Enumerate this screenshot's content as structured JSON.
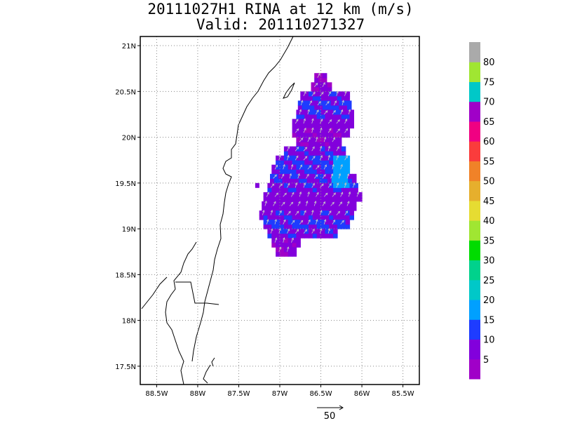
{
  "chart_data": {
    "type": "heatmap",
    "title": "20111027H1 RINA at 12 km (m/s)",
    "subtitle": "Valid: 201110271327",
    "xlabel": "",
    "ylabel": "",
    "xlim": [
      -88.7,
      -85.3
    ],
    "ylim": [
      17.3,
      21.1
    ],
    "x_ticks": [
      -88.5,
      -88,
      -87.5,
      -87,
      -86.5,
      -86,
      -85.5
    ],
    "x_tick_labels": [
      "88.5W",
      "88W",
      "87.5W",
      "87W",
      "86.5W",
      "86W",
      "85.5W"
    ],
    "y_ticks": [
      17.5,
      18,
      18.5,
      19,
      19.5,
      20,
      20.5,
      21
    ],
    "y_tick_labels": [
      "17.5N",
      "18N",
      "18.5N",
      "19N",
      "19.5N",
      "20N",
      "20.5N",
      "21N"
    ],
    "grid": true,
    "colorbar": {
      "labels": [
        "5",
        "10",
        "15",
        "20",
        "25",
        "30",
        "35",
        "40",
        "45",
        "50",
        "55",
        "60",
        "65",
        "70",
        "75",
        "80"
      ],
      "levels": [
        0,
        5,
        10,
        15,
        20,
        25,
        30,
        35,
        40,
        45,
        50,
        55,
        60,
        65,
        70,
        75,
        80,
        85
      ],
      "colors": [
        "#a000c8",
        "#8200dc",
        "#1e3cff",
        "#00a0ff",
        "#00c8c8",
        "#00d28c",
        "#00dc00",
        "#a0e632",
        "#e6dc32",
        "#e6af2d",
        "#f08228",
        "#fa3c3c",
        "#f00082",
        "#a000c8",
        "#00c8c8",
        "#a0e632",
        "#aaaaaa"
      ]
    },
    "wind_field": {
      "description_rows": [
        {
          "lat": 20.65,
          "lon_start": -86.58,
          "lon_end": -86.48,
          "speed": 5
        },
        {
          "lat": 20.55,
          "lon_start": -86.62,
          "lon_end": -86.42,
          "speed": 5
        },
        {
          "lat": 20.45,
          "lon_start": -86.75,
          "lon_end": -86.2,
          "speed": 8
        },
        {
          "lat": 20.35,
          "lon_start": -86.78,
          "lon_end": -86.15,
          "speed": 10
        },
        {
          "lat": 20.25,
          "lon_start": -86.8,
          "lon_end": -86.12,
          "speed": 9
        },
        {
          "lat": 20.15,
          "lon_start": -86.85,
          "lon_end": -86.15,
          "speed": 7
        },
        {
          "lat": 20.05,
          "lon_start": -86.85,
          "lon_end": -86.2,
          "speed": 6
        },
        {
          "lat": 19.95,
          "lon_start": -86.8,
          "lon_end": -86.28,
          "speed": 6
        },
        {
          "lat": 19.85,
          "lon_start": -86.95,
          "lon_end": -86.22,
          "speed": 8
        },
        {
          "lat": 19.75,
          "lon_start": -87.05,
          "lon_end": -86.2,
          "speed": 10
        },
        {
          "lat": 19.65,
          "lon_start": -87.1,
          "lon_end": -86.18,
          "speed": 10
        },
        {
          "lat": 19.55,
          "lon_start": -87.12,
          "lon_end": -86.12,
          "speed": 9
        },
        {
          "lat": 19.45,
          "lon_start": -87.15,
          "lon_end": -86.1,
          "speed": 8
        },
        {
          "lat": 19.35,
          "lon_start": -87.2,
          "lon_end": -86.05,
          "speed": 7
        },
        {
          "lat": 19.25,
          "lon_start": -87.22,
          "lon_end": -86.1,
          "speed": 7
        },
        {
          "lat": 19.15,
          "lon_start": -87.25,
          "lon_end": -86.12,
          "speed": 8
        },
        {
          "lat": 19.05,
          "lon_start": -87.2,
          "lon_end": -86.2,
          "speed": 10
        },
        {
          "lat": 18.95,
          "lon_start": -87.15,
          "lon_end": -86.35,
          "speed": 8
        },
        {
          "lat": 18.85,
          "lon_start": -87.1,
          "lon_end": -86.8,
          "speed": 6
        },
        {
          "lat": 18.75,
          "lon_start": -87.05,
          "lon_end": -86.85,
          "speed": 5
        }
      ],
      "max_region": {
        "lat": [
          19.45,
          19.75
        ],
        "lon": [
          -86.4,
          -86.2
        ],
        "speed": 18
      }
    },
    "reference_vector": {
      "label": "50",
      "value": 50
    }
  }
}
